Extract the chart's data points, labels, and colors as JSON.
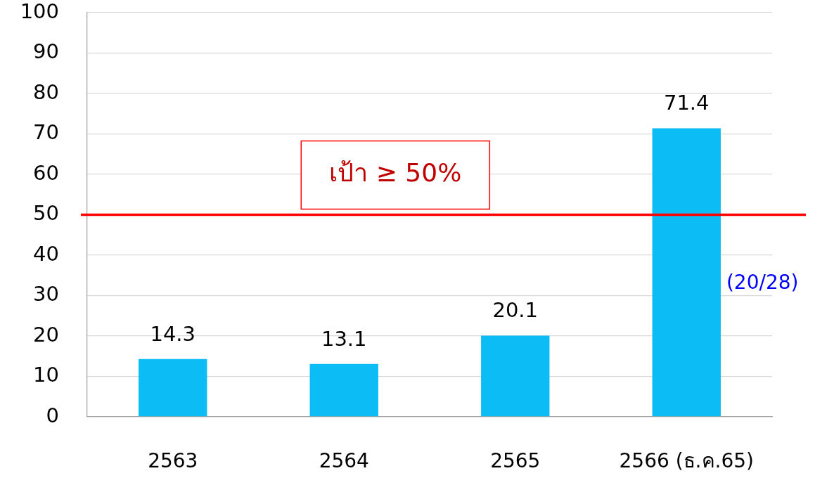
{
  "chart_data": {
    "type": "bar",
    "categories": [
      "2563",
      "2564",
      "2565",
      "2566 (ธ.ค.65)"
    ],
    "values": [
      14.3,
      13.1,
      20.1,
      71.4
    ],
    "color": "#0cbcf4",
    "ylim": [
      0,
      100
    ],
    "yticks": [
      0,
      10,
      20,
      30,
      40,
      50,
      60,
      70,
      80,
      90,
      100
    ],
    "grid": "y",
    "data_labels": true,
    "ref_lines": [
      {
        "axis": "y",
        "value": 50,
        "label": "เป้า ≥ 50%",
        "color": "#ff0000"
      }
    ],
    "annotations": [
      "(20/28)"
    ]
  }
}
